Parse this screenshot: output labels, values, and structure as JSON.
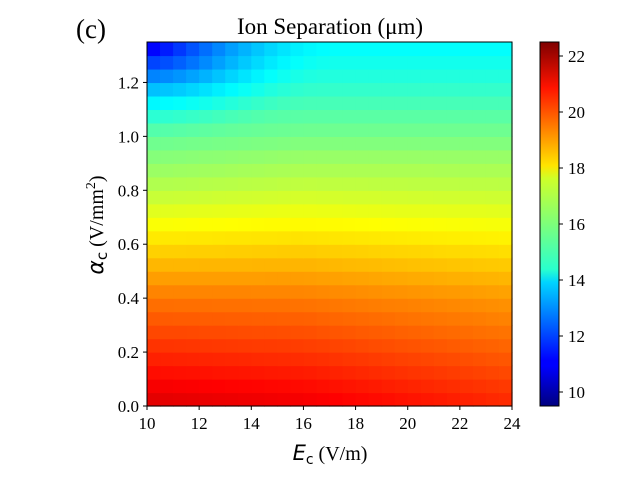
{
  "chart_data": {
    "type": "heatmap",
    "panel_label": "(c)",
    "title": "Ion Separation (μm)",
    "xlabel": "E_c (V/m)",
    "ylabel": "α_c (V/mm²)",
    "xlim": [
      10,
      24
    ],
    "ylim": [
      0,
      1.35
    ],
    "xticks": [
      "10",
      "12",
      "14",
      "16",
      "18",
      "20",
      "22",
      "24"
    ],
    "yticks": [
      "0.0",
      "0.2",
      "0.4",
      "0.6",
      "0.8",
      "1.0",
      "1.2"
    ],
    "grid": false,
    "colormap": "jet",
    "colorbar": {
      "range": [
        9.5,
        22.5
      ],
      "ticks": [
        "10",
        "12",
        "14",
        "16",
        "18",
        "20",
        "22"
      ]
    },
    "grid_size": {
      "nx": 28,
      "ny": 27
    },
    "approximate_surface": {
      "description": "Separation decreases with alpha_c; near 21-22 at alpha_c=0, ~18 at 0.6, ~15.5 at 1.0, ~14 at 1.35; low-E / high-alpha corner drops to ~11.",
      "alpha_profile": [
        [
          0.0,
          21.6
        ],
        [
          0.2,
          20.6
        ],
        [
          0.4,
          19.6
        ],
        [
          0.6,
          18.3
        ],
        [
          0.8,
          17.0
        ],
        [
          1.0,
          15.9
        ],
        [
          1.2,
          14.9
        ],
        [
          1.35,
          14.3
        ]
      ],
      "corner_low_value": 11.0
    }
  }
}
